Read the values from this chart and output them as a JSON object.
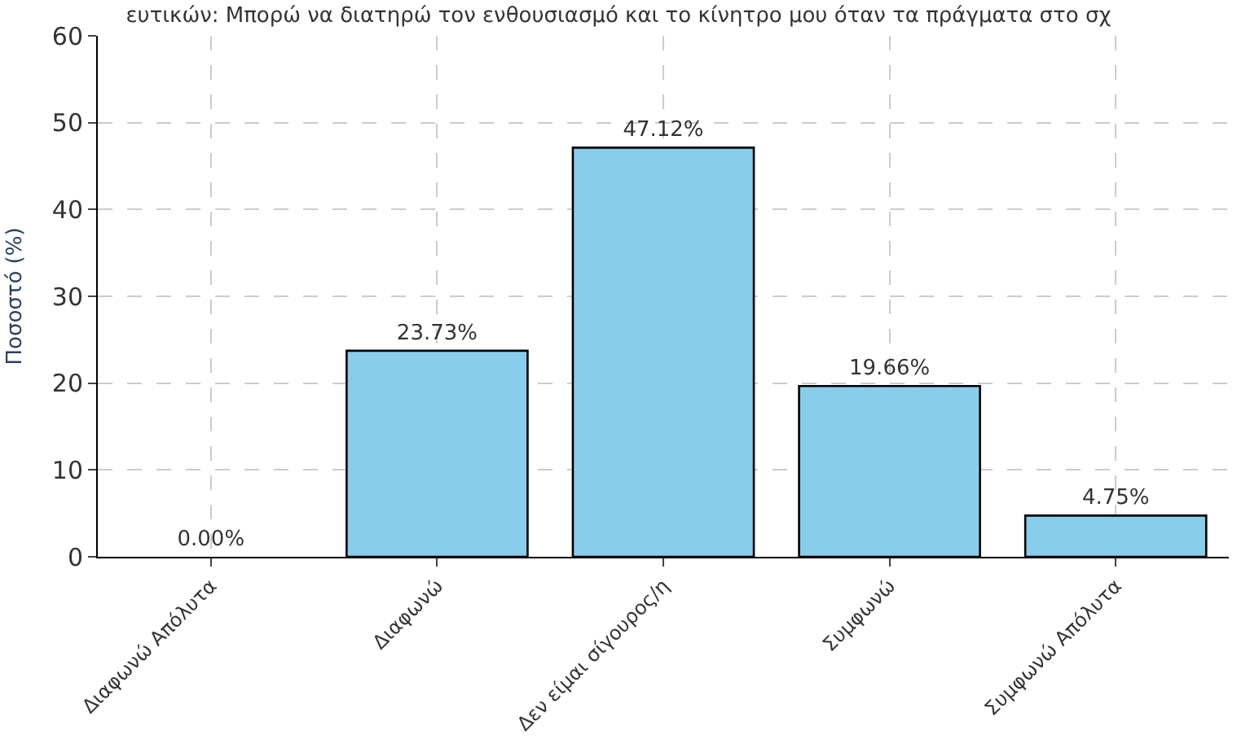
{
  "chart_data": {
    "type": "bar",
    "title": "ευτικών: Μπορώ να διατηρώ τον ενθουσιασμό και το κίνητρο μου όταν τα πράγματα στο σχ",
    "ylabel": "Ποσοστό (%)",
    "categories": [
      "Διαφωνώ Απόλυτα",
      "Διαφωνώ",
      "Δεν είμαι σίγουρος/η",
      "Συμφωνώ",
      "Συμφωνώ Απόλυτα"
    ],
    "values": [
      0.0,
      23.73,
      47.12,
      19.66,
      4.75
    ],
    "value_labels": [
      "0.00%",
      "23.73%",
      "47.12%",
      "19.66%",
      "4.75%"
    ],
    "color": "#87ceeb",
    "ylim": [
      0,
      60
    ],
    "yticks": [
      0,
      10,
      20,
      30,
      40,
      50,
      60
    ],
    "grid": true
  }
}
